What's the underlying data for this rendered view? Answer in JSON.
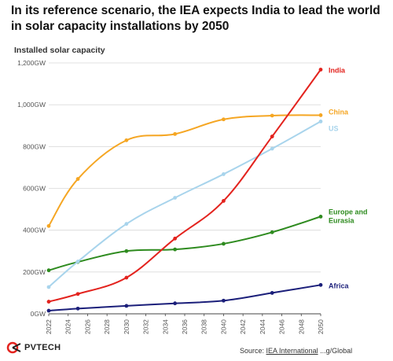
{
  "headline": "In its reference scenario, the IEA expects India to lead the world in solar capacity installations by 2050",
  "footer": {
    "logo_text": "PVTECH",
    "source_prefix": "Source: ",
    "source_link": "IEA International",
    "source_tail": " ...g/Global"
  },
  "chart_data": {
    "type": "line",
    "title": "",
    "subtitle": "Installed solar capacity",
    "xlabel": "",
    "ylabel": "",
    "xlim": [
      2022,
      2050
    ],
    "ylim": [
      0,
      1200
    ],
    "x_ticks": [
      2022,
      2024,
      2026,
      2028,
      2030,
      2032,
      2034,
      2036,
      2038,
      2040,
      2042,
      2044,
      2046,
      2048,
      2050
    ],
    "y_ticks": [
      0,
      200,
      400,
      600,
      800,
      1000,
      1200
    ],
    "y_tick_labels": [
      "0GW",
      "200GW",
      "400GW",
      "600GW",
      "800GW",
      "1,000GW",
      "1,200GW"
    ],
    "grid": "horizontal",
    "legend": "inline labels at right end of lines",
    "series": [
      {
        "name": "India",
        "label_lines": [
          "India"
        ],
        "color": "#e3231e",
        "x": [
          2022,
          2025,
          2030,
          2035,
          2040,
          2045,
          2050
        ],
        "y": [
          58,
          95,
          173,
          360,
          540,
          848,
          1168
        ]
      },
      {
        "name": "China",
        "label_lines": [
          "China"
        ],
        "color": "#f5a623",
        "x": [
          2022,
          2025,
          2030,
          2035,
          2040,
          2045,
          2050
        ],
        "y": [
          420,
          645,
          830,
          860,
          930,
          948,
          950
        ]
      },
      {
        "name": "US",
        "label_lines": [
          "US"
        ],
        "color": "#a8d4ec",
        "x": [
          2022,
          2025,
          2030,
          2035,
          2040,
          2045,
          2050
        ],
        "y": [
          128,
          250,
          430,
          555,
          668,
          790,
          920
        ]
      },
      {
        "name": "Europe and Eurasia",
        "label_lines": [
          "Europe and",
          "Eurasia"
        ],
        "color": "#2e8b1f",
        "x": [
          2022,
          2025,
          2030,
          2035,
          2040,
          2045,
          2050
        ],
        "y": [
          208,
          248,
          300,
          308,
          335,
          390,
          465
        ]
      },
      {
        "name": "Africa",
        "label_lines": [
          "Africa"
        ],
        "color": "#1b1f7a",
        "x": [
          2022,
          2025,
          2030,
          2035,
          2040,
          2045,
          2050
        ],
        "y": [
          15,
          25,
          38,
          50,
          63,
          100,
          138
        ]
      }
    ]
  }
}
